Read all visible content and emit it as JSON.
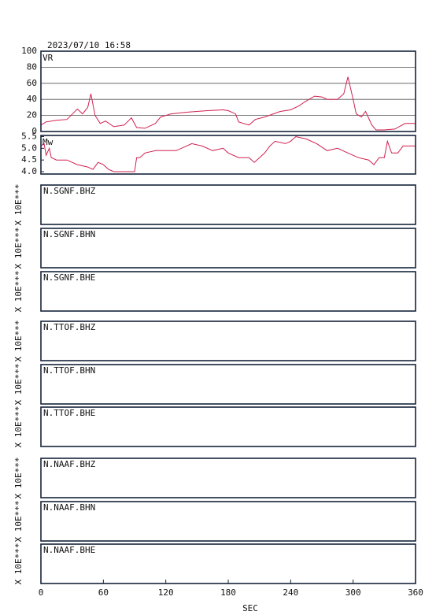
{
  "chart_data": [
    {
      "type": "line",
      "title": "2023/07/10 16:58",
      "label": "VR",
      "color": "#d0204f",
      "x": [
        0,
        5,
        15,
        25,
        35,
        40,
        45,
        48,
        52,
        57,
        62,
        70,
        80,
        87,
        92,
        100,
        110,
        115,
        125,
        140,
        160,
        175,
        180,
        187,
        190,
        200,
        206,
        215,
        230,
        240,
        248,
        255,
        263,
        270,
        275,
        285,
        291,
        295,
        300,
        303,
        308,
        312,
        318,
        322,
        330,
        340,
        350,
        360
      ],
      "values": [
        8,
        12,
        14,
        15,
        28,
        22,
        30,
        47,
        20,
        10,
        13,
        6,
        8,
        17,
        5,
        4,
        10,
        18,
        22,
        24,
        26,
        27,
        26,
        22,
        12,
        8,
        15,
        18,
        25,
        27,
        32,
        38,
        44,
        43,
        40,
        40,
        47,
        68,
        40,
        22,
        18,
        25,
        8,
        2,
        2,
        3,
        10,
        10
      ],
      "xlim": [
        0,
        360
      ],
      "ylim": [
        0,
        100
      ],
      "yticks": [
        0,
        20,
        40,
        60,
        80,
        100
      ],
      "grid": true
    },
    {
      "type": "line",
      "label": "Mw",
      "color": "#d0204f",
      "x": [
        0,
        3,
        5,
        8,
        10,
        15,
        25,
        35,
        45,
        50,
        55,
        60,
        65,
        70,
        90,
        92,
        95,
        100,
        110,
        130,
        145,
        155,
        165,
        175,
        180,
        190,
        200,
        205,
        210,
        215,
        220,
        225,
        235,
        240,
        245,
        255,
        265,
        275,
        285,
        295,
        305,
        315,
        320,
        325,
        330,
        333,
        337,
        343,
        348,
        360
      ],
      "values": [
        5.1,
        5.2,
        4.7,
        5.0,
        4.6,
        4.5,
        4.5,
        4.3,
        4.2,
        4.1,
        4.4,
        4.3,
        4.1,
        4.0,
        4.0,
        4.6,
        4.6,
        4.8,
        4.9,
        4.9,
        5.2,
        5.1,
        4.9,
        5.0,
        4.8,
        4.6,
        4.6,
        4.4,
        4.6,
        4.8,
        5.1,
        5.3,
        5.2,
        5.3,
        5.5,
        5.4,
        5.2,
        4.9,
        5.0,
        4.8,
        4.6,
        4.5,
        4.3,
        4.6,
        4.6,
        5.3,
        4.8,
        4.8,
        5.1,
        5.1
      ],
      "xlim": [
        0,
        360
      ],
      "ylim": [
        3.9,
        5.55
      ],
      "yticks": [
        {
          "value": 4,
          "label": "4.0"
        },
        4.5,
        {
          "value": 5,
          "label": "5.0"
        },
        5.5
      ],
      "grid": false
    },
    {
      "type": "waveform",
      "y_label": "X 10E***",
      "panels": [
        "N.SGNF.BHZ",
        "N.SGNF.BHN",
        "N.SGNF.BHE",
        "N.TTOF.BHZ",
        "N.TTOF.BHN",
        "N.TTOF.BHE",
        "N.NAAF.BHZ",
        "N.NAAF.BHN",
        "N.NAAF.BHE"
      ],
      "xlim": [
        0,
        360
      ],
      "xticks": [
        0,
        60,
        120,
        180,
        240,
        300,
        360
      ],
      "xlabel": "SEC"
    }
  ]
}
